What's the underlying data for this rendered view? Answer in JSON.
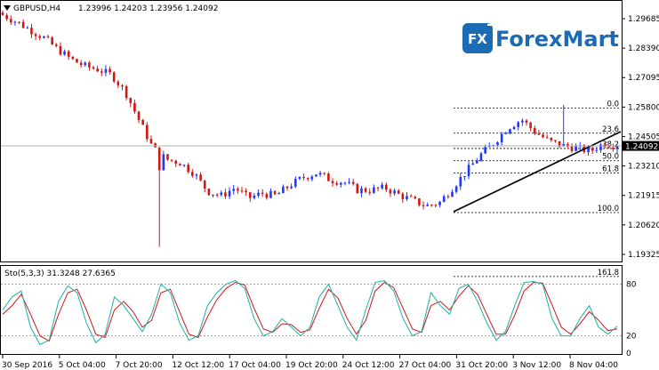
{
  "chart_header": {
    "symbol_timeframe": "GBPUSD,H4",
    "ohlc": "1.23996 1.24203 1.23956 1.24092"
  },
  "brand": {
    "mark": "FX",
    "name": "ForexMart",
    "color": "#1c6cb5"
  },
  "colors": {
    "bull": "#1f36ff",
    "bear": "#d41515",
    "stoch_main": "#1bb1a6",
    "stoch_signal": "#d41515",
    "trend": "#000000"
  },
  "price_axis": {
    "ticks": [
      "1.29685",
      "1.28390",
      "1.27095",
      "1.25800",
      "1.24505",
      "1.23210",
      "1.21915",
      "1.20620",
      "1.19325"
    ],
    "current_price": "1.24092"
  },
  "fibonacci": {
    "levels": [
      "0.0",
      "23.6",
      "38.2",
      "50.0",
      "61.8",
      "100.0",
      "161.8"
    ],
    "values": [
      1.2575,
      1.2465,
      1.2398,
      1.2344,
      1.229,
      1.2116,
      1.1835
    ]
  },
  "stochastic": {
    "label": "Sto(5,3,3) 31.3248 27.6365",
    "levels": [
      "80",
      "20",
      "0"
    ]
  },
  "time_axis": {
    "labels": [
      "30 Sep 2016",
      "5 Oct 04:00",
      "7 Oct 20:00",
      "12 Oct 12:00",
      "17 Oct 04:00",
      "19 Oct 20:00",
      "24 Oct 12:00",
      "27 Oct 04:00",
      "31 Oct 20:00",
      "3 Nov 12:00",
      "8 Nov 04:00"
    ]
  },
  "chart_data": {
    "type": "candlestick",
    "title": "GBPUSD,H4",
    "candles_close_path": [
      1.2985,
      1.2955,
      1.292,
      1.2885,
      1.2835,
      1.279,
      1.276,
      1.2745,
      1.272,
      1.2645,
      1.252,
      1.24,
      1.235,
      1.2335,
      1.229,
      1.221,
      1.219,
      1.2225,
      1.218,
      1.22,
      1.219,
      1.2235,
      1.227,
      1.229,
      1.226,
      1.225,
      1.2215,
      1.2215,
      1.2225,
      1.2195,
      1.217,
      1.2145,
      1.216,
      1.223,
      1.23,
      1.237,
      1.2425,
      1.249,
      1.2525,
      1.247,
      1.243,
      1.241,
      1.24,
      1.2385,
      1.242,
      1.2409
    ],
    "y_range": [
      1.1905,
      1.3035
    ],
    "stochastic": {
      "main": [
        50,
        65,
        72,
        30,
        10,
        15,
        60,
        78,
        70,
        35,
        12,
        22,
        65,
        55,
        40,
        25,
        45,
        80,
        70,
        35,
        15,
        20,
        55,
        70,
        80,
        84,
        75,
        40,
        20,
        25,
        40,
        30,
        20,
        30,
        65,
        80,
        55,
        30,
        15,
        50,
        82,
        84,
        72,
        40,
        20,
        25,
        70,
        55,
        45,
        75,
        80,
        60,
        35,
        15,
        25,
        55,
        82,
        83,
        80,
        40,
        20,
        20,
        40,
        55,
        30,
        22,
        31
      ],
      "signal": [
        45,
        55,
        68,
        45,
        20,
        14,
        45,
        70,
        74,
        50,
        22,
        18,
        50,
        60,
        48,
        30,
        38,
        70,
        74,
        48,
        22,
        18,
        42,
        62,
        75,
        82,
        79,
        52,
        28,
        24,
        34,
        33,
        24,
        27,
        52,
        74,
        64,
        40,
        22,
        38,
        72,
        82,
        76,
        52,
        28,
        24,
        55,
        60,
        50,
        66,
        78,
        68,
        45,
        22,
        22,
        44,
        72,
        82,
        81,
        56,
        30,
        22,
        34,
        48,
        38,
        26,
        28
      ]
    }
  }
}
